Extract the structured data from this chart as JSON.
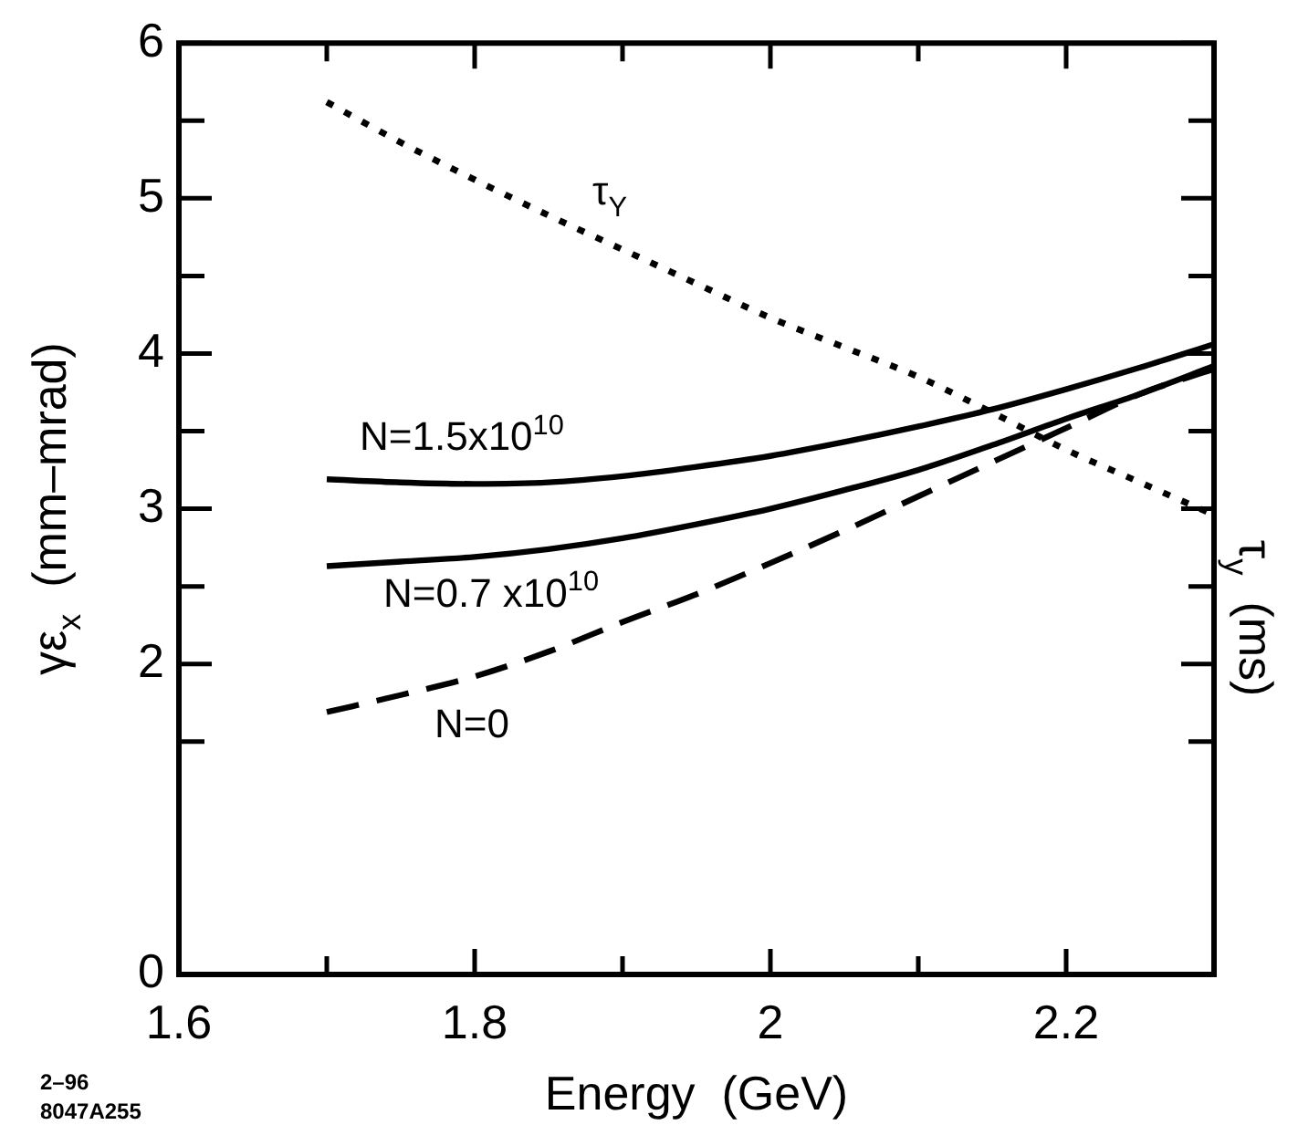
{
  "chart_data": {
    "type": "line",
    "xlabel": "Energy  (GeV)",
    "ylabel": "γε$_{x}$  (mm–mrad)",
    "y2label": "τ$_{y}$  (ms)",
    "x": [
      1.7,
      1.75,
      1.8,
      1.85,
      1.9,
      1.95,
      2.0,
      2.05,
      2.1,
      2.15,
      2.2,
      2.25,
      2.3
    ],
    "series": [
      {
        "name": "N=1.5x10$^{10}$",
        "color": "#000000",
        "line_style": "solid",
        "values": [
          3.19,
          3.17,
          3.16,
          3.17,
          3.21,
          3.27,
          3.34,
          3.43,
          3.53,
          3.64,
          3.77,
          3.91,
          4.06
        ]
      },
      {
        "name": "N=0.7 x10$^{10}$",
        "color": "#000000",
        "line_style": "solid",
        "values": [
          2.63,
          2.66,
          2.69,
          2.74,
          2.81,
          2.9,
          3.0,
          3.12,
          3.25,
          3.41,
          3.58,
          3.74,
          3.92
        ]
      },
      {
        "name": "N=0",
        "color": "#000000",
        "line_style": "dashed",
        "values": [
          1.69,
          1.8,
          1.92,
          2.08,
          2.27,
          2.45,
          2.65,
          2.86,
          3.08,
          3.3,
          3.52,
          3.74,
          3.9
        ]
      },
      {
        "name": "τ$_{Y}$",
        "color": "#000000",
        "line_style": "dotted",
        "values": [
          5.62,
          5.36,
          5.12,
          4.89,
          4.67,
          4.45,
          4.23,
          4.04,
          3.85,
          3.62,
          3.38,
          3.17,
          2.96
        ]
      }
    ],
    "xlim": [
      1.6,
      2.3
    ],
    "xticks": [
      1.6,
      {
        "value": 1.7,
        "label": null
      },
      1.8,
      {
        "value": 1.9,
        "label": null
      },
      2.0,
      {
        "value": 2.1,
        "label": null
      },
      2.2,
      {
        "value": 2.3,
        "label": null
      }
    ],
    "ylim": [
      0,
      6
    ],
    "yticks": [
      0,
      {
        "value": 1.5,
        "label": null
      },
      2,
      {
        "value": 2.5,
        "label": null
      },
      3,
      {
        "value": 3.5,
        "label": null
      },
      4,
      {
        "value": 4.5,
        "label": null
      },
      5,
      {
        "value": 5.5,
        "label": null
      },
      6
    ],
    "grid": false,
    "legend": false,
    "marker": "none",
    "annotations": [
      "2–96",
      "8047A255"
    ]
  }
}
